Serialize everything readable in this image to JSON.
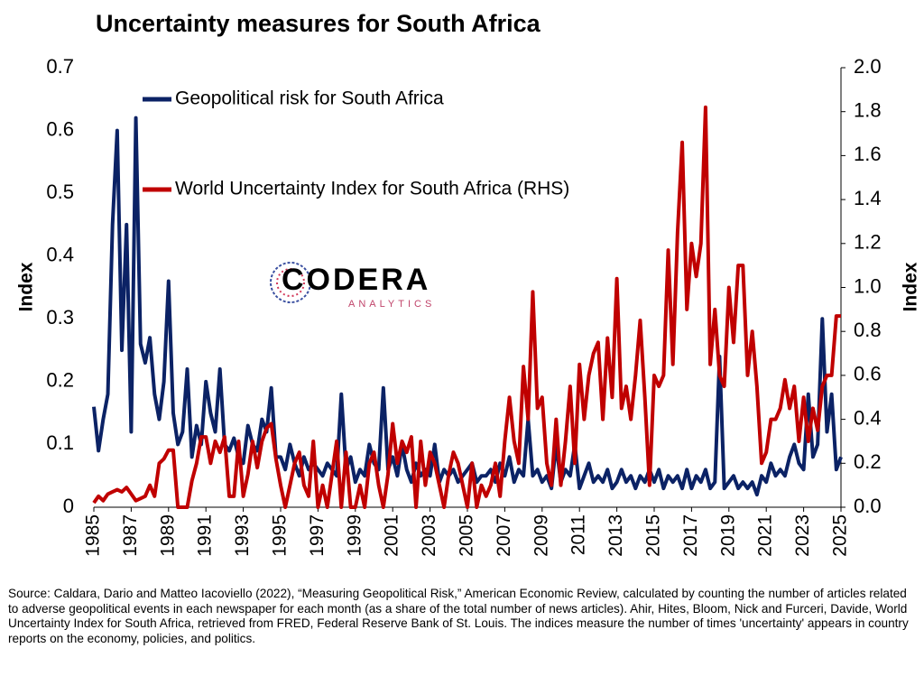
{
  "chart_data": {
    "type": "line",
    "title": "Uncertainty measures for South Africa",
    "ylabel": "Index",
    "y2label": "Index",
    "logo": {
      "text": "CODERA",
      "subtext": "ANALYTICS"
    },
    "source": "Source: Caldara, Dario and Matteo Iacoviello (2022), “Measuring Geopolitical Risk,” American Economic Review, calculated by counting the number of articles related to adverse geopolitical events in each newspaper for each month (as a share of the total number of news articles). Ahir, Hites, Bloom, Nick and Furceri, Davide, World Uncertainty Index for South Africa, retrieved from FRED, Federal Reserve Bank of St. Louis. The indices measure the number of times 'uncertainty' appears in country reports on the economy, policies, and politics.",
    "x": [
      1985,
      1985.25,
      1985.5,
      1985.75,
      1986,
      1986.25,
      1986.5,
      1986.75,
      1987,
      1987.25,
      1987.5,
      1987.75,
      1988,
      1988.25,
      1988.5,
      1988.75,
      1989,
      1989.25,
      1989.5,
      1989.75,
      1990,
      1990.25,
      1990.5,
      1990.75,
      1991,
      1991.25,
      1991.5,
      1991.75,
      1992,
      1992.25,
      1992.5,
      1992.75,
      1993,
      1993.25,
      1993.5,
      1993.75,
      1994,
      1994.25,
      1994.5,
      1994.75,
      1995,
      1995.25,
      1995.5,
      1995.75,
      1996,
      1996.25,
      1996.5,
      1996.75,
      1997,
      1997.25,
      1997.5,
      1997.75,
      1998,
      1998.25,
      1998.5,
      1998.75,
      1999,
      1999.25,
      1999.5,
      1999.75,
      2000,
      2000.25,
      2000.5,
      2000.75,
      2001,
      2001.25,
      2001.5,
      2001.75,
      2002,
      2002.25,
      2002.5,
      2002.75,
      2003,
      2003.25,
      2003.5,
      2003.75,
      2004,
      2004.25,
      2004.5,
      2004.75,
      2005,
      2005.25,
      2005.5,
      2005.75,
      2006,
      2006.25,
      2006.5,
      2006.75,
      2007,
      2007.25,
      2007.5,
      2007.75,
      2008,
      2008.25,
      2008.5,
      2008.75,
      2009,
      2009.25,
      2009.5,
      2009.75,
      2010,
      2010.25,
      2010.5,
      2010.75,
      2011,
      2011.25,
      2011.5,
      2011.75,
      2012,
      2012.25,
      2012.5,
      2012.75,
      2013,
      2013.25,
      2013.5,
      2013.75,
      2014,
      2014.25,
      2014.5,
      2014.75,
      2015,
      2015.25,
      2015.5,
      2015.75,
      2016,
      2016.25,
      2016.5,
      2016.75,
      2017,
      2017.25,
      2017.5,
      2017.75,
      2018,
      2018.25,
      2018.5,
      2018.75,
      2019,
      2019.25,
      2019.5,
      2019.75,
      2020,
      2020.25,
      2020.5,
      2020.75,
      2021,
      2021.25,
      2021.5,
      2021.75,
      2022,
      2022.25,
      2022.5,
      2022.75,
      2023,
      2023.25,
      2023.5,
      2023.75,
      2024,
      2024.25,
      2024.5,
      2024.75,
      2025
    ],
    "series": [
      {
        "name": "Geopolitical risk for South Africa",
        "color": "#0b2265",
        "axis": "y",
        "values": [
          0.16,
          0.09,
          0.14,
          0.18,
          0.45,
          0.6,
          0.25,
          0.45,
          0.12,
          0.62,
          0.26,
          0.23,
          0.27,
          0.18,
          0.14,
          0.2,
          0.36,
          0.15,
          0.1,
          0.12,
          0.22,
          0.08,
          0.13,
          0.1,
          0.2,
          0.15,
          0.12,
          0.22,
          0.1,
          0.09,
          0.11,
          0.08,
          0.07,
          0.13,
          0.1,
          0.09,
          0.14,
          0.12,
          0.19,
          0.08,
          0.08,
          0.06,
          0.1,
          0.07,
          0.05,
          0.08,
          0.06,
          0.07,
          0.06,
          0.05,
          0.07,
          0.06,
          0.05,
          0.18,
          0.06,
          0.08,
          0.04,
          0.06,
          0.05,
          0.1,
          0.07,
          0.06,
          0.19,
          0.06,
          0.08,
          0.05,
          0.1,
          0.06,
          0.04,
          0.07,
          0.05,
          0.06,
          0.05,
          0.1,
          0.04,
          0.06,
          0.05,
          0.06,
          0.04,
          0.05,
          0.06,
          0.07,
          0.04,
          0.05,
          0.05,
          0.06,
          0.04,
          0.07,
          0.05,
          0.08,
          0.04,
          0.06,
          0.05,
          0.14,
          0.05,
          0.06,
          0.04,
          0.05,
          0.03,
          0.1,
          0.04,
          0.06,
          0.05,
          0.1,
          0.03,
          0.05,
          0.07,
          0.04,
          0.05,
          0.04,
          0.06,
          0.03,
          0.04,
          0.06,
          0.04,
          0.05,
          0.03,
          0.05,
          0.04,
          0.06,
          0.04,
          0.06,
          0.03,
          0.05,
          0.04,
          0.05,
          0.03,
          0.06,
          0.03,
          0.05,
          0.04,
          0.06,
          0.03,
          0.04,
          0.24,
          0.03,
          0.04,
          0.05,
          0.03,
          0.04,
          0.03,
          0.04,
          0.02,
          0.05,
          0.04,
          0.07,
          0.05,
          0.06,
          0.05,
          0.08,
          0.1,
          0.07,
          0.06,
          0.18,
          0.08,
          0.1,
          0.3,
          0.12,
          0.18,
          0.06,
          0.08
        ]
      },
      {
        "name": "World Uncertainty Index for South Africa (RHS)",
        "color": "#c00000",
        "axis": "y2",
        "values": [
          0.02,
          0.05,
          0.03,
          0.06,
          0.07,
          0.08,
          0.07,
          0.09,
          0.06,
          0.03,
          0.04,
          0.05,
          0.1,
          0.05,
          0.2,
          0.22,
          0.26,
          0.26,
          0.0,
          0.0,
          0.0,
          0.12,
          0.2,
          0.32,
          0.32,
          0.2,
          0.3,
          0.25,
          0.32,
          0.05,
          0.05,
          0.3,
          0.05,
          0.15,
          0.3,
          0.18,
          0.3,
          0.36,
          0.38,
          0.22,
          0.1,
          0.0,
          0.1,
          0.2,
          0.25,
          0.1,
          0.05,
          0.3,
          0.0,
          0.1,
          0.0,
          0.15,
          0.3,
          0.0,
          0.25,
          0.0,
          0.0,
          0.1,
          0.0,
          0.2,
          0.25,
          0.1,
          0.0,
          0.15,
          0.38,
          0.2,
          0.3,
          0.25,
          0.32,
          0.0,
          0.3,
          0.1,
          0.25,
          0.2,
          0.1,
          0.0,
          0.15,
          0.25,
          0.2,
          0.1,
          0.0,
          0.2,
          0.0,
          0.1,
          0.05,
          0.1,
          0.2,
          0.05,
          0.3,
          0.5,
          0.3,
          0.2,
          0.64,
          0.4,
          0.98,
          0.45,
          0.5,
          0.2,
          0.1,
          0.4,
          0.1,
          0.3,
          0.55,
          0.2,
          0.65,
          0.4,
          0.6,
          0.7,
          0.75,
          0.4,
          0.77,
          0.5,
          1.04,
          0.45,
          0.55,
          0.4,
          0.6,
          0.85,
          0.5,
          0.1,
          0.6,
          0.55,
          0.6,
          1.17,
          0.65,
          1.25,
          1.66,
          0.9,
          1.2,
          1.05,
          1.2,
          1.82,
          0.65,
          0.9,
          0.6,
          0.55,
          1.0,
          0.75,
          1.1,
          1.1,
          0.6,
          0.8,
          0.55,
          0.2,
          0.25,
          0.4,
          0.4,
          0.45,
          0.58,
          0.45,
          0.55,
          0.3,
          0.5,
          0.3,
          0.45,
          0.35,
          0.55,
          0.6,
          0.6,
          0.87,
          0.87
        ]
      }
    ],
    "xlim": [
      1985,
      2025
    ],
    "xticks": [
      1985,
      1987,
      1989,
      1991,
      1993,
      1995,
      1997,
      1999,
      2001,
      2003,
      2005,
      2007,
      2009,
      2011,
      2013,
      2015,
      2017,
      2019,
      2021,
      2023,
      2025
    ],
    "ylim": [
      0,
      0.7
    ],
    "yticks": [
      0,
      0.1,
      0.2,
      0.3,
      0.4,
      0.5,
      0.6,
      0.7
    ],
    "y2lim": [
      0,
      2
    ],
    "y2ticks": [
      {
        "value": 0,
        "label": "0.0"
      },
      0.2,
      0.4,
      0.6,
      0.8,
      {
        "value": 1,
        "label": "1.0"
      },
      1.2,
      1.4,
      1.6,
      1.8,
      {
        "value": 2,
        "label": "2.0"
      }
    ],
    "grid": false
  }
}
